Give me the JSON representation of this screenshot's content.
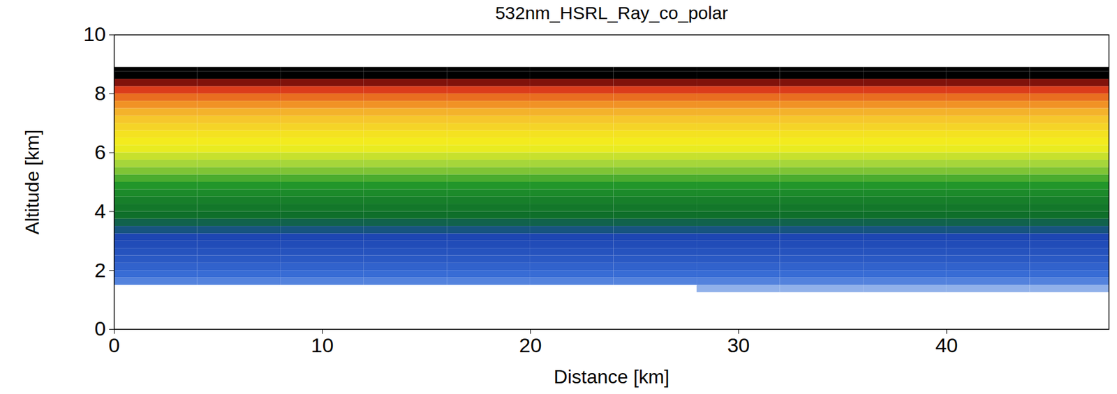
{
  "chart_data": {
    "type": "heatmap",
    "title": "532nm_HSRL_Ray_co_polar",
    "xlabel": "Distance [km]",
    "ylabel": "Altitude [km]",
    "xlim": [
      0,
      47.8
    ],
    "ylim": [
      0,
      10
    ],
    "xticks": [
      0,
      10,
      20,
      30,
      40
    ],
    "yticks": [
      0,
      2,
      4,
      6,
      8,
      10
    ],
    "color_range": [
      0,
      1
    ],
    "x": [
      0,
      4,
      8,
      12,
      16,
      20,
      24,
      28,
      32,
      36,
      40,
      44,
      48
    ],
    "y": [
      1.25,
      1.5,
      1.75,
      2.0,
      2.25,
      2.5,
      2.75,
      3.0,
      3.25,
      3.5,
      3.75,
      4.0,
      4.25,
      4.5,
      4.75,
      5.0,
      5.25,
      5.5,
      5.75,
      6.0,
      6.25,
      6.5,
      6.75,
      7.0,
      7.25,
      7.5,
      7.75,
      8.0,
      8.25,
      8.5,
      8.75,
      8.9
    ],
    "values": [
      [
        null,
        null,
        null,
        null,
        null,
        null,
        null,
        0.05,
        0.05,
        0.05,
        0.05,
        0.05
      ],
      [
        0.1,
        0.1,
        0.1,
        0.1,
        0.1,
        0.1,
        0.1,
        0.1,
        0.1,
        0.1,
        0.1,
        0.1
      ],
      [
        0.13,
        0.13,
        0.13,
        0.13,
        0.13,
        0.13,
        0.13,
        0.13,
        0.13,
        0.13,
        0.13,
        0.13
      ],
      [
        0.16,
        0.16,
        0.16,
        0.16,
        0.16,
        0.16,
        0.16,
        0.16,
        0.16,
        0.16,
        0.16,
        0.16
      ],
      [
        0.19,
        0.19,
        0.19,
        0.19,
        0.19,
        0.19,
        0.19,
        0.19,
        0.19,
        0.19,
        0.19,
        0.19
      ],
      [
        0.21,
        0.21,
        0.21,
        0.21,
        0.21,
        0.21,
        0.21,
        0.21,
        0.21,
        0.21,
        0.21,
        0.21
      ],
      [
        0.23,
        0.23,
        0.23,
        0.23,
        0.23,
        0.23,
        0.23,
        0.23,
        0.23,
        0.23,
        0.23,
        0.23
      ],
      [
        0.25,
        0.25,
        0.25,
        0.25,
        0.25,
        0.25,
        0.25,
        0.25,
        0.25,
        0.25,
        0.25,
        0.25
      ],
      [
        0.28,
        0.28,
        0.28,
        0.28,
        0.28,
        0.28,
        0.28,
        0.28,
        0.28,
        0.28,
        0.28,
        0.28
      ],
      [
        0.31,
        0.31,
        0.31,
        0.31,
        0.31,
        0.31,
        0.31,
        0.31,
        0.31,
        0.31,
        0.31,
        0.31
      ],
      [
        0.34,
        0.34,
        0.34,
        0.34,
        0.34,
        0.34,
        0.34,
        0.34,
        0.34,
        0.34,
        0.34,
        0.34
      ],
      [
        0.36,
        0.36,
        0.36,
        0.36,
        0.36,
        0.36,
        0.36,
        0.36,
        0.36,
        0.36,
        0.36,
        0.36
      ],
      [
        0.38,
        0.38,
        0.38,
        0.38,
        0.38,
        0.38,
        0.38,
        0.38,
        0.38,
        0.38,
        0.38,
        0.38
      ],
      [
        0.41,
        0.41,
        0.41,
        0.41,
        0.41,
        0.41,
        0.41,
        0.41,
        0.41,
        0.41,
        0.41,
        0.41
      ],
      [
        0.44,
        0.44,
        0.44,
        0.44,
        0.44,
        0.44,
        0.44,
        0.44,
        0.44,
        0.44,
        0.44,
        0.44
      ],
      [
        0.48,
        0.48,
        0.48,
        0.48,
        0.48,
        0.48,
        0.48,
        0.48,
        0.48,
        0.48,
        0.48,
        0.48
      ],
      [
        0.52,
        0.52,
        0.52,
        0.52,
        0.52,
        0.52,
        0.52,
        0.52,
        0.52,
        0.52,
        0.52,
        0.52
      ],
      [
        0.55,
        0.55,
        0.55,
        0.55,
        0.55,
        0.55,
        0.55,
        0.55,
        0.55,
        0.55,
        0.55,
        0.55
      ],
      [
        0.58,
        0.58,
        0.58,
        0.58,
        0.58,
        0.58,
        0.58,
        0.58,
        0.58,
        0.58,
        0.58,
        0.58
      ],
      [
        0.61,
        0.61,
        0.61,
        0.61,
        0.61,
        0.61,
        0.61,
        0.61,
        0.61,
        0.61,
        0.61,
        0.61
      ],
      [
        0.63,
        0.63,
        0.63,
        0.63,
        0.63,
        0.63,
        0.63,
        0.63,
        0.63,
        0.63,
        0.63,
        0.63
      ],
      [
        0.65,
        0.65,
        0.65,
        0.65,
        0.65,
        0.65,
        0.65,
        0.65,
        0.65,
        0.65,
        0.65,
        0.65
      ],
      [
        0.68,
        0.68,
        0.68,
        0.68,
        0.68,
        0.68,
        0.68,
        0.68,
        0.68,
        0.68,
        0.68,
        0.68
      ],
      [
        0.71,
        0.71,
        0.71,
        0.71,
        0.71,
        0.71,
        0.71,
        0.71,
        0.71,
        0.71,
        0.71,
        0.71
      ],
      [
        0.74,
        0.74,
        0.74,
        0.74,
        0.74,
        0.74,
        0.74,
        0.74,
        0.74,
        0.74,
        0.74,
        0.74
      ],
      [
        0.78,
        0.78,
        0.78,
        0.78,
        0.78,
        0.78,
        0.78,
        0.78,
        0.78,
        0.78,
        0.78,
        0.78
      ],
      [
        0.82,
        0.82,
        0.82,
        0.82,
        0.82,
        0.82,
        0.82,
        0.82,
        0.82,
        0.82,
        0.82,
        0.82
      ],
      [
        0.87,
        0.87,
        0.87,
        0.87,
        0.87,
        0.87,
        0.87,
        0.87,
        0.87,
        0.87,
        0.87,
        0.87
      ],
      [
        0.93,
        0.93,
        0.93,
        0.93,
        0.93,
        0.93,
        0.93,
        0.93,
        0.93,
        0.93,
        0.93,
        0.93
      ],
      [
        1,
        1,
        1,
        1,
        1,
        1,
        1,
        1,
        1,
        1,
        1,
        1
      ],
      [
        1,
        1,
        1,
        1,
        1,
        1,
        1,
        1,
        1,
        1,
        1,
        1
      ]
    ]
  }
}
